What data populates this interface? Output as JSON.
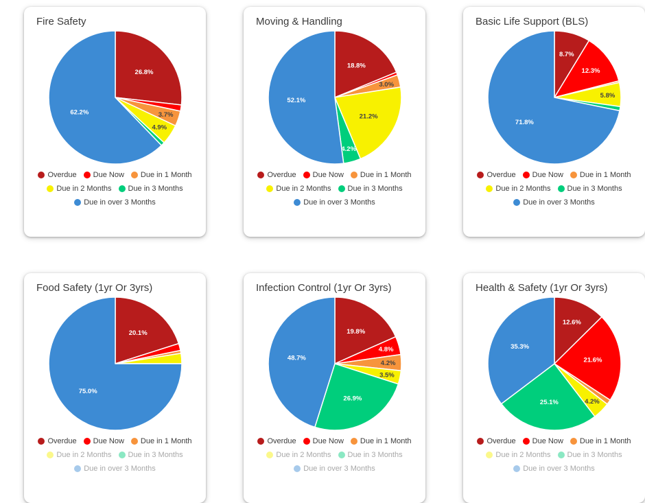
{
  "palette": {
    "slice_colors": [
      "#B71C1C",
      "#FF0000",
      "#F7943C",
      "#F8F100",
      "#00CE7C",
      "#3D8BD4"
    ],
    "label_dark": "#424242",
    "label_light": "#ffffff"
  },
  "legend": {
    "items": [
      {
        "label": "Overdue",
        "color": "#B71C1C"
      },
      {
        "label": "Due Now",
        "color": "#FF0000"
      },
      {
        "label": "Due in 1 Month",
        "color": "#F7943C"
      },
      {
        "label": "Due in 2 Months",
        "color": "#F8F100"
      },
      {
        "label": "Due in 3 Months",
        "color": "#00CE7C"
      },
      {
        "label": "Due in over 3 Months",
        "color": "#3D8BD4"
      }
    ],
    "rows": [
      [
        0,
        1,
        2
      ],
      [
        3,
        4
      ],
      [
        5
      ]
    ]
  },
  "chart_data": [
    {
      "type": "pie",
      "title": "Fire Safety",
      "categories": [
        "Overdue",
        "Due Now",
        "Due in 1 Month",
        "Due in 2 Months",
        "Due in 3 Months",
        "Due in over 3 Months"
      ],
      "values": [
        26.8,
        1.5,
        3.7,
        4.9,
        0.9,
        62.2
      ],
      "legend_position": "bottom"
    },
    {
      "type": "pie",
      "title": "Moving & Handling",
      "categories": [
        "Overdue",
        "Due Now",
        "Due in 1 Month",
        "Due in 2 Months",
        "Due in 3 Months",
        "Due in over 3 Months"
      ],
      "values": [
        18.8,
        0.7,
        3.0,
        21.2,
        4.2,
        52.1
      ],
      "legend_position": "bottom"
    },
    {
      "type": "pie",
      "title": "Basic Life Support (BLS)",
      "categories": [
        "Overdue",
        "Due Now",
        "Due in 1 Month",
        "Due in 2 Months",
        "Due in 3 Months",
        "Due in over 3 Months"
      ],
      "values": [
        8.7,
        12.3,
        0.4,
        5.8,
        1.0,
        71.8
      ],
      "legend_position": "bottom"
    },
    {
      "type": "pie",
      "title": "Food Safety (1yr Or 3yrs)",
      "categories": [
        "Overdue",
        "Due Now",
        "Due in 1 Month",
        "Due in 2 Months",
        "Due in 3 Months",
        "Due in over 3 Months"
      ],
      "values": [
        20.1,
        1.7,
        0.7,
        2.5,
        0.0,
        75.0
      ],
      "legend_position": "bottom"
    },
    {
      "type": "pie",
      "title": "Infection Control (1yr Or 3yrs)",
      "categories": [
        "Overdue",
        "Due Now",
        "Due in 1 Month",
        "Due in 2 Months",
        "Due in 3 Months",
        "Due in over 3 Months"
      ],
      "values": [
        19.8,
        4.8,
        4.2,
        3.5,
        26.9,
        48.7
      ],
      "legend_position": "bottom"
    },
    {
      "type": "pie",
      "title": "Health & Safety (1yr Or 3yrs)",
      "categories": [
        "Overdue",
        "Due Now",
        "Due in 1 Month",
        "Due in 2 Months",
        "Due in 3 Months",
        "Due in over 3 Months"
      ],
      "values": [
        12.6,
        21.6,
        1.2,
        4.2,
        25.1,
        35.3
      ],
      "legend_position": "bottom"
    }
  ]
}
